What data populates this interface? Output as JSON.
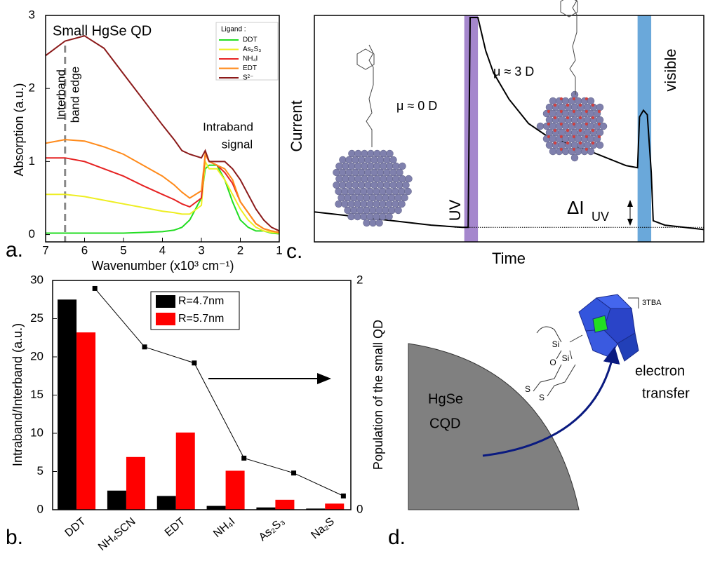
{
  "chart_data": [
    {
      "type": "line",
      "panel_label": "a.",
      "title": "Small HgSe QD",
      "x_label": "Wavenumber (x10³ cm⁻¹)",
      "y_label": "Absorption (a.u.)",
      "legend_title": "Ligand :",
      "annotations": {
        "band_edge": [
          "Interband",
          "band edge"
        ],
        "intraband": [
          "Intraband",
          "signal"
        ]
      },
      "band_edge_x": 6.5,
      "x": [
        7,
        6.5,
        6,
        5.5,
        5,
        4.5,
        4,
        3.7,
        3.5,
        3.3,
        3,
        2.9,
        2.8,
        2.6,
        2.4,
        2.2,
        2,
        1.8,
        1.6,
        1.4,
        1.2,
        1
      ],
      "xlim": [
        7,
        1
      ],
      "xticks": [
        7,
        6,
        5,
        4,
        3,
        2,
        1
      ],
      "ylim": [
        -0.1,
        3
      ],
      "yticks": [
        0,
        1,
        2,
        3
      ],
      "series": [
        {
          "name": "DDT",
          "color": "#22dd22",
          "values": [
            0.02,
            0.02,
            0.02,
            0.02,
            0.02,
            0.03,
            0.04,
            0.06,
            0.1,
            0.2,
            0.5,
            0.9,
            0.95,
            0.95,
            0.75,
            0.45,
            0.2,
            0.1,
            0.05,
            0.05,
            0.02,
            0.01
          ]
        },
        {
          "name": "As₂S₃",
          "color": "#eeee22",
          "values": [
            0.55,
            0.55,
            0.52,
            0.47,
            0.42,
            0.37,
            0.32,
            0.3,
            0.28,
            0.28,
            0.4,
            1.0,
            0.9,
            0.9,
            0.75,
            0.55,
            0.35,
            0.2,
            0.1,
            0.05,
            0.03,
            0.02
          ]
        },
        {
          "name": "NH₄I",
          "color": "#e62222",
          "values": [
            1.05,
            1.05,
            1.0,
            0.9,
            0.8,
            0.67,
            0.55,
            0.48,
            0.42,
            0.38,
            0.5,
            1.1,
            1.0,
            0.95,
            0.85,
            0.7,
            0.45,
            0.3,
            0.15,
            0.08,
            0.05,
            0.03
          ]
        },
        {
          "name": "EDT",
          "color": "#ff8a1a",
          "values": [
            1.25,
            1.3,
            1.28,
            1.2,
            1.1,
            0.95,
            0.8,
            0.68,
            0.58,
            0.5,
            0.6,
            1.1,
            1.0,
            0.95,
            0.9,
            0.75,
            0.45,
            0.3,
            0.15,
            0.08,
            0.05,
            0.03
          ]
        },
        {
          "name": "S²⁻",
          "color": "#8b1a1a",
          "values": [
            2.45,
            2.65,
            2.72,
            2.55,
            2.2,
            1.85,
            1.5,
            1.3,
            1.15,
            1.1,
            1.05,
            1.15,
            1.0,
            1.0,
            1.0,
            0.9,
            0.75,
            0.55,
            0.35,
            0.2,
            0.1,
            0.05
          ]
        }
      ]
    },
    {
      "type": "bar",
      "panel_label": "b.",
      "y_label": "Intraband/Interband (a.u.)",
      "y2_label": "Population of the small QD",
      "categories": [
        "DDT",
        "NH₄SCN",
        "EDT",
        "NH₄I",
        "As₂S₃",
        "Na₂S"
      ],
      "ylim": [
        0,
        30
      ],
      "yticks": [
        0,
        5,
        10,
        15,
        20,
        25,
        30
      ],
      "y2lim": [
        0,
        2
      ],
      "y2ticks": [
        0,
        2
      ],
      "series": [
        {
          "name": "R=4.7nm",
          "color": "#000000",
          "values": [
            27.5,
            2.5,
            1.8,
            0.5,
            0.3,
            0.15
          ]
        },
        {
          "name": "R=5.7nm",
          "color": "#ff0000",
          "values": [
            23.2,
            6.9,
            10.1,
            5.1,
            1.3,
            0.8
          ]
        },
        {
          "type": "line",
          "axis": "y2",
          "color": "#000000",
          "values": [
            1.93,
            1.42,
            1.28,
            0.45,
            0.32,
            0.12
          ]
        }
      ]
    },
    {
      "type": "line",
      "panel_label": "c.",
      "x_label": "Time",
      "y_label": "Current",
      "annotations": {
        "uv": "UV",
        "visible": "visible",
        "mu0": "μ ≈ 0 D",
        "mu3": "μ ≈ 3 D",
        "delta": "ΔI",
        "delta_sub": "UV"
      },
      "x": [
        0,
        10,
        20,
        30,
        38,
        39.5,
        40,
        42,
        44,
        46,
        50,
        55,
        60,
        70,
        80,
        83,
        83.5,
        84.5,
        85.5,
        86.5,
        87,
        90,
        95,
        100
      ],
      "xlim": [
        0,
        100
      ],
      "ylim": [
        0,
        1
      ],
      "uv_span": [
        38.5,
        42
      ],
      "visible_span": [
        83,
        86.5
      ],
      "baseline": 0.05,
      "series": [
        {
          "color": "#000000",
          "values": [
            0.12,
            0.1,
            0.08,
            0.06,
            0.05,
            0.05,
            1.0,
            1.0,
            0.85,
            0.75,
            0.63,
            0.52,
            0.46,
            0.4,
            0.33,
            0.32,
            0.55,
            0.58,
            0.56,
            0.3,
            0.08,
            0.06,
            0.05,
            0.04
          ]
        }
      ]
    }
  ],
  "diagram": {
    "panel_label": "d.",
    "core": [
      "HgSe",
      "CQD"
    ],
    "cluster": "3TBA",
    "transfer": [
      "electron",
      "transfer"
    ],
    "atoms": [
      "Si",
      "O",
      "Si",
      "S",
      "S"
    ]
  }
}
